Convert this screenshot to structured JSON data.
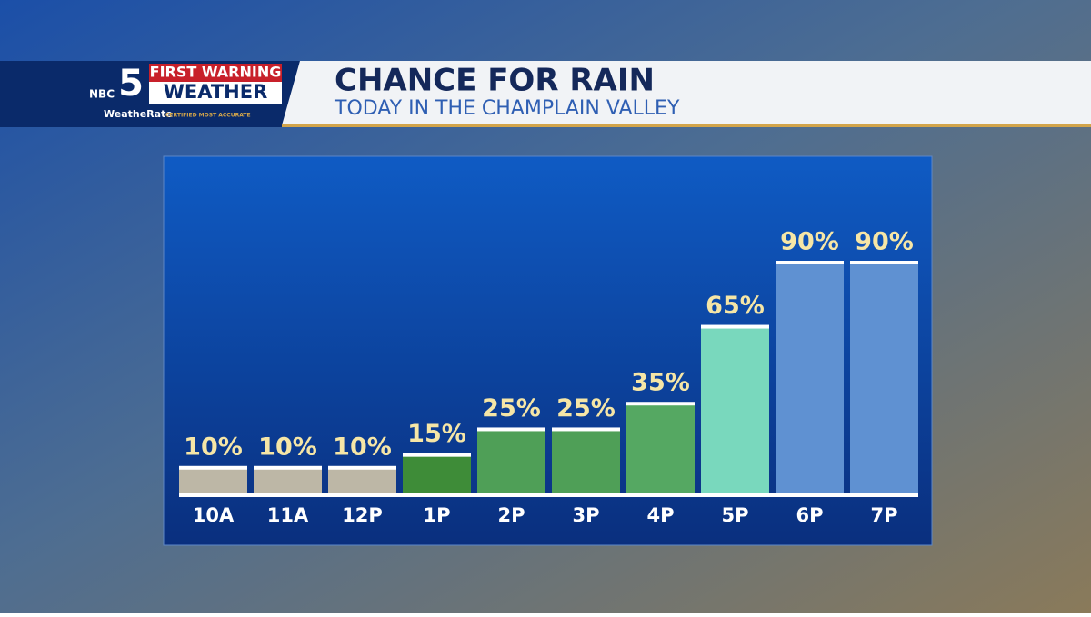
{
  "logo": {
    "network": "NBC",
    "channel": "5",
    "line1": "FIRST WARNING",
    "line2": "WEATHER",
    "badge": "WeatheRate",
    "badge_note": "CERTIFIED MOST ACCURATE"
  },
  "chart_data": {
    "type": "bar",
    "title": "CHANCE FOR RAIN",
    "subtitle": "TODAY IN THE CHAMPLAIN VALLEY",
    "categories": [
      "10A",
      "11A",
      "12P",
      "1P",
      "2P",
      "3P",
      "4P",
      "5P",
      "6P",
      "7P"
    ],
    "values": [
      10,
      10,
      10,
      15,
      25,
      25,
      35,
      65,
      90,
      90
    ],
    "value_labels": [
      "10%",
      "10%",
      "10%",
      "15%",
      "25%",
      "25%",
      "35%",
      "65%",
      "90%",
      "90%"
    ],
    "colors": [
      "#bdb7a6",
      "#bdb7a6",
      "#bdb7a6",
      "#3e8c38",
      "#4f9f57",
      "#4f9f57",
      "#55a862",
      "#79d8bd",
      "#5f91d2",
      "#5f91d2"
    ]
  }
}
